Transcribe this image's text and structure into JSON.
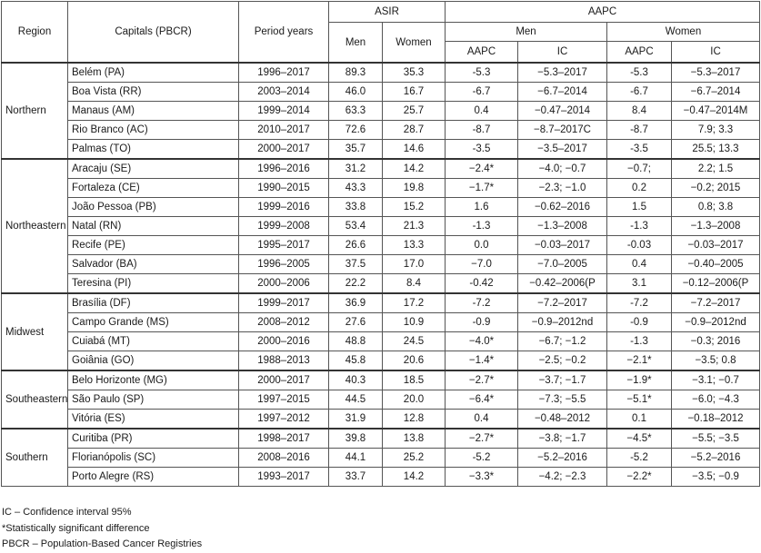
{
  "headers": {
    "region": "Region",
    "capitals": "Capitals (PBCR)",
    "period": "Period years",
    "asir": "ASIR",
    "aapc": "AAPC",
    "men": "Men",
    "women": "Women",
    "aapc_men": "Men",
    "aapc_women": "Women",
    "aapc_sub": "AAPC",
    "ic_sub": "IC"
  },
  "groups": [
    {
      "region": "Northern",
      "rows": [
        {
          "capital": "Belém (PA)",
          "period": "1996–2017",
          "men": "89.3",
          "women": "35.3",
          "aapc_m": "-5.3",
          "ic_m": "−5.3–2017",
          "aapc_w": "-5.3",
          "ic_w": "−5.3–2017"
        },
        {
          "capital": "Boa Vista (RR)",
          "period": "2003–2014",
          "men": "46.0",
          "women": "16.7",
          "aapc_m": "-6.7",
          "ic_m": "−6.7–2014",
          "aapc_w": "-6.7",
          "ic_w": "−6.7–2014"
        },
        {
          "capital": "Manaus (AM)",
          "period": "1999–2014",
          "men": "63.3",
          "women": "25.7",
          "aapc_m": "0.4",
          "ic_m": "−0.47–2014",
          "aapc_w": "8.4",
          "ic_w": "−0.47–2014M"
        },
        {
          "capital": "Rio Branco (AC)",
          "period": "2010–2017",
          "men": "72.6",
          "women": "28.7",
          "aapc_m": "-8.7",
          "ic_m": "−8.7–2017C",
          "aapc_w": "-8.7",
          "ic_w": "7.9; 3.3"
        },
        {
          "capital": "Palmas (TO)",
          "period": "2000–2017",
          "men": "35.7",
          "women": "14.6",
          "aapc_m": "-3.5",
          "ic_m": "−3.5–2017",
          "aapc_w": "-3.5",
          "ic_w": "25.5; 13.3"
        }
      ]
    },
    {
      "region": "Northeastern",
      "rows": [
        {
          "capital": "Aracaju (SE)",
          "period": "1996–2016",
          "men": "31.2",
          "women": "14.2",
          "aapc_m": "−2.4*",
          "ic_m": "−4.0; −0.7",
          "aapc_w": "−0.7;",
          "ic_w": "2.2; 1.5"
        },
        {
          "capital": "Fortaleza (CE)",
          "period": "1990–2015",
          "men": "43.3",
          "women": "19.8",
          "aapc_m": "−1.7*",
          "ic_m": "−2.3; −1.0",
          "aapc_w": "0.2",
          "ic_w": "−0.2; 2015"
        },
        {
          "capital": "João Pessoa (PB)",
          "period": "1999–2016",
          "men": "33.8",
          "women": "15.2",
          "aapc_m": "1.6",
          "ic_m": "−0.62–2016",
          "aapc_w": "1.5",
          "ic_w": "0.8; 3.8"
        },
        {
          "capital": "Natal (RN)",
          "period": "1999–2008",
          "men": "53.4",
          "women": "21.3",
          "aapc_m": "-1.3",
          "ic_m": "−1.3–2008",
          "aapc_w": "-1.3",
          "ic_w": "−1.3–2008"
        },
        {
          "capital": "Recife (PE)",
          "period": "1995–2017",
          "men": "26.6",
          "women": "13.3",
          "aapc_m": "0.0",
          "ic_m": "−0.03–2017",
          "aapc_w": "-0.03",
          "ic_w": "−0.03–2017"
        },
        {
          "capital": "Salvador (BA)",
          "period": "1996–2005",
          "men": "37.5",
          "women": "17.0",
          "aapc_m": "−7.0",
          "ic_m": "−7.0–2005",
          "aapc_w": "0.4",
          "ic_w": "−0.40–2005"
        },
        {
          "capital": "Teresina (PI)",
          "period": "2000–2006",
          "men": "22.2",
          "women": "8.4",
          "aapc_m": "-0.42",
          "ic_m": "−0.42–2006(P",
          "aapc_w": "3.1",
          "ic_w": "−0.12–2006(P"
        }
      ]
    },
    {
      "region": "Midwest",
      "rows": [
        {
          "capital": "Brasília (DF)",
          "period": "1999–2017",
          "men": "36.9",
          "women": "17.2",
          "aapc_m": "-7.2",
          "ic_m": "−7.2–2017",
          "aapc_w": "-7.2",
          "ic_w": "−7.2–2017"
        },
        {
          "capital": "Campo Grande (MS)",
          "period": "2008–2012",
          "men": "27.6",
          "women": "10.9",
          "aapc_m": "-0.9",
          "ic_m": "−0.9–2012nd",
          "aapc_w": "-0.9",
          "ic_w": "−0.9–2012nd"
        },
        {
          "capital": "Cuiabá (MT)",
          "period": "2000–2016",
          "men": "48.8",
          "women": "24.5",
          "aapc_m": "−4.0*",
          "ic_m": "−6.7; −1.2",
          "aapc_w": "-1.3",
          "ic_w": "−0.3; 2016"
        },
        {
          "capital": "Goiânia (GO)",
          "period": "1988–2013",
          "men": "45.8",
          "women": "20.6",
          "aapc_m": "−1.4*",
          "ic_m": "−2.5; −0.2",
          "aapc_w": "−2.1*",
          "ic_w": "−3.5; 0.8"
        }
      ]
    },
    {
      "region": "Southeastern",
      "rows": [
        {
          "capital": "Belo Horizonte (MG)",
          "period": "2000–2017",
          "men": "40.3",
          "women": "18.5",
          "aapc_m": "−2.7*",
          "ic_m": "−3.7; −1.7",
          "aapc_w": "−1.9*",
          "ic_w": "−3.1; −0.7"
        },
        {
          "capital": "São Paulo (SP)",
          "period": "1997–2015",
          "men": "44.5",
          "women": "20.0",
          "aapc_m": "−6.4*",
          "ic_m": "−7.3; −5.5",
          "aapc_w": "−5.1*",
          "ic_w": "−6.0; −4.3"
        },
        {
          "capital": "Vitória (ES)",
          "period": "1997–2012",
          "men": "31.9",
          "women": "12.8",
          "aapc_m": "0.4",
          "ic_m": "−0.48–2012",
          "aapc_w": "0.1",
          "ic_w": "−0.18–2012"
        }
      ]
    },
    {
      "region": "Southern",
      "rows": [
        {
          "capital": "Curitiba (PR)",
          "period": "1998–2017",
          "men": "39.8",
          "women": "13.8",
          "aapc_m": "−2.7*",
          "ic_m": "−3.8; −1.7",
          "aapc_w": "−4.5*",
          "ic_w": "−5.5; −3.5"
        },
        {
          "capital": "Florianópolis (SC)",
          "period": "2008–2016",
          "men": "44.1",
          "women": "25.2",
          "aapc_m": "-5.2",
          "ic_m": "−5.2–2016",
          "aapc_w": "-5.2",
          "ic_w": "−5.2–2016"
        },
        {
          "capital": "Porto Alegre (RS)",
          "period": "1993–2017",
          "men": "33.7",
          "women": "14.2",
          "aapc_m": "−3.3*",
          "ic_m": "−4.2; −2.3",
          "aapc_w": "−2.2*",
          "ic_w": "−3.5; −0.9"
        }
      ]
    }
  ],
  "footnotes": [
    "IC – Confidence interval 95%",
    "*Statistically significant difference",
    "PBCR – Population-Based Cancer Registries"
  ]
}
